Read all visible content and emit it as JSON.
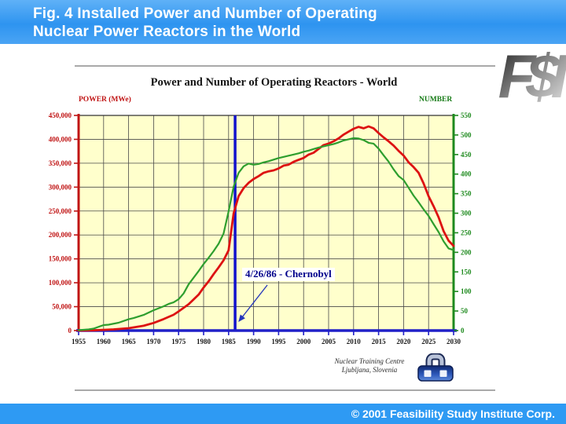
{
  "slide": {
    "header": {
      "line1": "Fig. 4   Installed Power and Number of Operating",
      "line2": "Nuclear Power Reactors in the World"
    },
    "logo": {
      "text": "F$I"
    },
    "attribution": {
      "line1": "Nuclear Training Centre",
      "line2": "Ljubljana, Slovenia"
    },
    "footer": {
      "copyright": "© 2001 Feasibility Study Institute Corp."
    }
  },
  "chart_data": {
    "type": "line",
    "title": "Power and Number of Operating Reactors - World",
    "plot_bg": "#ffffcc",
    "grid": true,
    "grid_color": "#4a4a4a",
    "x_axis": {
      "lim": [
        1955,
        2030
      ],
      "ticks": [
        1955,
        1960,
        1965,
        1970,
        1975,
        1980,
        1985,
        1990,
        1995,
        2000,
        2005,
        2010,
        2015,
        2020,
        2025,
        2030
      ],
      "color": "#2020c8"
    },
    "left_axis": {
      "label": "POWER (MWe)",
      "lim": [
        0,
        450000
      ],
      "ticks": [
        0,
        50000,
        100000,
        150000,
        200000,
        250000,
        300000,
        350000,
        400000,
        450000
      ],
      "color": "#c01414"
    },
    "right_axis": {
      "label": "NUMBER",
      "lim": [
        0,
        550
      ],
      "ticks": [
        0,
        50,
        100,
        150,
        200,
        250,
        300,
        350,
        400,
        450,
        500,
        550
      ],
      "color": "#1e8a1e"
    },
    "annotation": {
      "text": "4/26/86 - Chernobyl",
      "x": 1986.3,
      "line_color": "#1212cc",
      "text_color": "#00008b"
    },
    "series": [
      {
        "name": "POWER (MWe)",
        "axis": "left",
        "color": "#dd1212",
        "points": [
          [
            1955,
            0
          ],
          [
            1958,
            500
          ],
          [
            1960,
            1500
          ],
          [
            1962,
            2500
          ],
          [
            1965,
            5000
          ],
          [
            1968,
            10000
          ],
          [
            1970,
            16000
          ],
          [
            1972,
            24000
          ],
          [
            1974,
            33000
          ],
          [
            1975,
            40000
          ],
          [
            1977,
            55000
          ],
          [
            1979,
            75000
          ],
          [
            1980,
            90000
          ],
          [
            1981,
            103000
          ],
          [
            1982,
            118000
          ],
          [
            1983,
            132000
          ],
          [
            1984,
            147000
          ],
          [
            1985,
            168000
          ],
          [
            1986,
            245000
          ],
          [
            1987,
            281000
          ],
          [
            1988,
            298000
          ],
          [
            1989,
            309000
          ],
          [
            1990,
            317000
          ],
          [
            1991,
            323000
          ],
          [
            1992,
            330000
          ],
          [
            1993,
            333000
          ],
          [
            1994,
            335000
          ],
          [
            1995,
            339000
          ],
          [
            1996,
            345000
          ],
          [
            1997,
            347000
          ],
          [
            1998,
            353000
          ],
          [
            1999,
            357000
          ],
          [
            2000,
            361000
          ],
          [
            2001,
            368000
          ],
          [
            2002,
            372000
          ],
          [
            2003,
            380000
          ],
          [
            2004,
            388000
          ],
          [
            2005,
            391000
          ],
          [
            2006,
            396000
          ],
          [
            2007,
            402000
          ],
          [
            2008,
            410000
          ],
          [
            2009,
            416000
          ],
          [
            2010,
            422000
          ],
          [
            2011,
            426000
          ],
          [
            2012,
            423000
          ],
          [
            2013,
            427000
          ],
          [
            2014,
            423000
          ],
          [
            2015,
            413000
          ],
          [
            2016,
            404000
          ],
          [
            2017,
            396000
          ],
          [
            2018,
            387000
          ],
          [
            2019,
            376000
          ],
          [
            2020,
            366000
          ],
          [
            2021,
            352000
          ],
          [
            2022,
            342000
          ],
          [
            2023,
            330000
          ],
          [
            2024,
            308000
          ],
          [
            2025,
            281000
          ],
          [
            2026,
            260000
          ],
          [
            2027,
            237000
          ],
          [
            2028,
            208000
          ],
          [
            2029,
            188000
          ],
          [
            2030,
            177000
          ]
        ]
      },
      {
        "name": "NUMBER",
        "axis": "right",
        "color": "#2e9e2e",
        "points": [
          [
            1955,
            1
          ],
          [
            1957,
            3
          ],
          [
            1958,
            5
          ],
          [
            1960,
            14
          ],
          [
            1961,
            15
          ],
          [
            1963,
            20
          ],
          [
            1965,
            29
          ],
          [
            1966,
            32
          ],
          [
            1968,
            40
          ],
          [
            1970,
            52
          ],
          [
            1971,
            57
          ],
          [
            1972,
            62
          ],
          [
            1973,
            68
          ],
          [
            1974,
            72
          ],
          [
            1975,
            80
          ],
          [
            1976,
            95
          ],
          [
            1977,
            118
          ],
          [
            1978,
            135
          ],
          [
            1979,
            152
          ],
          [
            1980,
            170
          ],
          [
            1981,
            186
          ],
          [
            1982,
            203
          ],
          [
            1983,
            222
          ],
          [
            1984,
            248
          ],
          [
            1985,
            305
          ],
          [
            1986,
            368
          ],
          [
            1987,
            403
          ],
          [
            1988,
            420
          ],
          [
            1989,
            427
          ],
          [
            1990,
            424
          ],
          [
            1991,
            426
          ],
          [
            1992,
            430
          ],
          [
            1993,
            433
          ],
          [
            1994,
            437
          ],
          [
            1995,
            441
          ],
          [
            1996,
            444
          ],
          [
            1997,
            447
          ],
          [
            1998,
            450
          ],
          [
            1999,
            453
          ],
          [
            2000,
            457
          ],
          [
            2001,
            460
          ],
          [
            2002,
            464
          ],
          [
            2003,
            468
          ],
          [
            2004,
            471
          ],
          [
            2005,
            474
          ],
          [
            2006,
            477
          ],
          [
            2007,
            481
          ],
          [
            2008,
            486
          ],
          [
            2009,
            489
          ],
          [
            2010,
            492
          ],
          [
            2011,
            491
          ],
          [
            2012,
            487
          ],
          [
            2013,
            480
          ],
          [
            2014,
            478
          ],
          [
            2015,
            465
          ],
          [
            2016,
            448
          ],
          [
            2017,
            432
          ],
          [
            2018,
            412
          ],
          [
            2019,
            395
          ],
          [
            2020,
            385
          ],
          [
            2021,
            365
          ],
          [
            2022,
            345
          ],
          [
            2023,
            328
          ],
          [
            2024,
            310
          ],
          [
            2025,
            293
          ],
          [
            2026,
            272
          ],
          [
            2027,
            252
          ],
          [
            2028,
            228
          ],
          [
            2029,
            210
          ],
          [
            2030,
            206
          ]
        ]
      }
    ]
  }
}
